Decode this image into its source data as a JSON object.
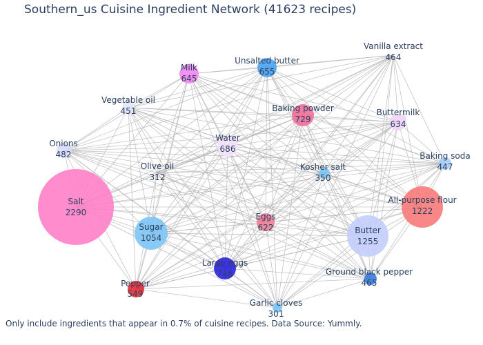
{
  "title": "Southern_us Cuisine Ingredient Network (41623 recipes)",
  "footnote": "Only include ingredients that appear in 0.7% of cuisine recipes. Data Source: Yummly.",
  "network": {
    "nodes": [
      {
        "name": "Salt",
        "count": 2290,
        "color": "#ff7fc8"
      },
      {
        "name": "Butter",
        "count": 1255,
        "color": "#c3cdfb"
      },
      {
        "name": "All-purpose flour",
        "count": 1222,
        "color": "#f97a7a"
      },
      {
        "name": "Sugar",
        "count": 1054,
        "color": "#7cc4f5"
      },
      {
        "name": "Large eggs",
        "count": 746,
        "color": "#2a22dd"
      },
      {
        "name": "Baking powder",
        "count": 729,
        "color": "#ef6f9a"
      },
      {
        "name": "Water",
        "count": 686,
        "color": "#f3e1fb"
      },
      {
        "name": "Unsalted butter",
        "count": 655,
        "color": "#4aa2f0"
      },
      {
        "name": "Milk",
        "count": 645,
        "color": "#f286ef"
      },
      {
        "name": "Buttermilk",
        "count": 634,
        "color": "#f1d3f5"
      },
      {
        "name": "Eggs",
        "count": 622,
        "color": "#f07f96"
      },
      {
        "name": "Pepper",
        "count": 549,
        "color": "#e52a35"
      },
      {
        "name": "Onions",
        "count": 482,
        "color": "#d9dcf6"
      },
      {
        "name": "Ground black pepper",
        "count": 465,
        "color": "#3a7de0"
      },
      {
        "name": "Vanilla extract",
        "count": 464,
        "color": "#ffffff"
      },
      {
        "name": "Vegetable oil",
        "count": 451,
        "color": "#e4e6f7"
      },
      {
        "name": "Baking soda",
        "count": 447,
        "color": "#a5cdf7"
      },
      {
        "name": "Kosher salt",
        "count": 350,
        "color": "#7cc4f5"
      },
      {
        "name": "Olive oil",
        "count": 312,
        "color": "#ffffff"
      },
      {
        "name": "Garlic cloves",
        "count": 301,
        "color": "#7cc4f5"
      }
    ],
    "edge_color": "#b0b0b0"
  }
}
